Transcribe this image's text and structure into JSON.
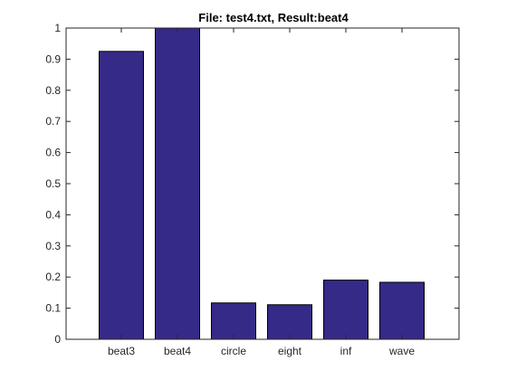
{
  "chart_data": {
    "type": "bar",
    "title": "File: test4.txt, Result:beat4",
    "xlabel": "",
    "ylabel": "",
    "categories": [
      "beat3",
      "beat4",
      "circle",
      "eight",
      "inf",
      "wave"
    ],
    "values": [
      0.925,
      1.0,
      0.117,
      0.111,
      0.19,
      0.183
    ],
    "ylim": [
      0,
      1
    ],
    "yticks": [
      "0",
      "0.1",
      "0.2",
      "0.3",
      "0.4",
      "0.5",
      "0.6",
      "0.7",
      "0.8",
      "0.9",
      "1"
    ],
    "grid": false,
    "legend": "none",
    "bar_color": "#352a87",
    "bar_edge_color": "#000000"
  }
}
